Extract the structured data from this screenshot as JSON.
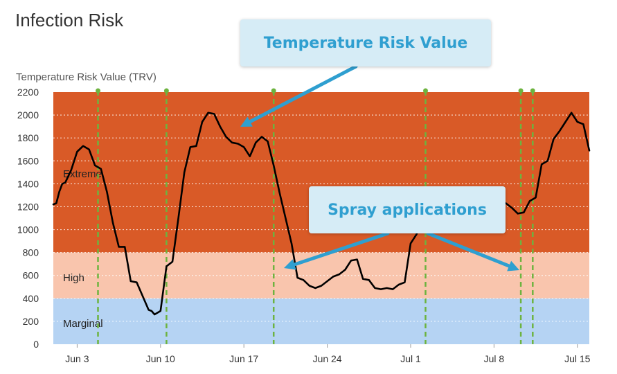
{
  "title": "Infection Risk",
  "callouts": {
    "trv": "Temperature Risk Value",
    "spray": "Spray applications"
  },
  "colors": {
    "extreme": "#d95a27",
    "high": "#f9c5ad",
    "marginal": "#b5d3f3",
    "line": "#000000",
    "spray": "#6db33f",
    "callout_bg": "#d6ecf6",
    "callout_text": "#2f9fd0",
    "arrow": "#2f9fd0"
  },
  "chart_data": {
    "type": "line",
    "ylabel": "Temperature Risk Value (TRV)",
    "ylim": [
      0,
      2200
    ],
    "yticks": [
      0,
      200,
      400,
      600,
      800,
      1000,
      1200,
      1400,
      1600,
      1800,
      2000,
      2200
    ],
    "xlim": [
      "2024-06-01",
      "2024-07-16"
    ],
    "xticks": [
      {
        "date": "2024-06-03",
        "label": "Jun 3"
      },
      {
        "date": "2024-06-10",
        "label": "Jun 10"
      },
      {
        "date": "2024-06-17",
        "label": "Jun 17"
      },
      {
        "date": "2024-06-24",
        "label": "Jun 24"
      },
      {
        "date": "2024-07-01",
        "label": "Jul 1"
      },
      {
        "date": "2024-07-08",
        "label": "Jul 8"
      },
      {
        "date": "2024-07-15",
        "label": "Jul 15"
      }
    ],
    "bands": [
      {
        "label": "Marginal",
        "from": 0,
        "to": 400
      },
      {
        "label": "High",
        "from": 400,
        "to": 800
      },
      {
        "label": "Extreme",
        "from": 800,
        "to": 2200
      }
    ],
    "grid": true,
    "spray_dates": [
      "2024-06-04T18:00",
      "2024-06-10T12:00",
      "2024-06-19T12:00",
      "2024-07-02T06:00",
      "2024-07-10T06:00",
      "2024-07-11T06:00"
    ],
    "series": [
      {
        "x": [
          "2024-06-01T00:00",
          "2024-06-01T06:00",
          "2024-06-01T12:00",
          "2024-06-01T18:00",
          "2024-06-02T00:00",
          "2024-06-02T12:00",
          "2024-06-03T00:00",
          "2024-06-03T12:00",
          "2024-06-04T00:00",
          "2024-06-04T12:00",
          "2024-06-05T00:00",
          "2024-06-05T12:00",
          "2024-06-06T00:00",
          "2024-06-06T12:00",
          "2024-06-07T00:00",
          "2024-06-07T12:00",
          "2024-06-08T00:00",
          "2024-06-08T12:00",
          "2024-06-09T00:00",
          "2024-06-09T06:00",
          "2024-06-09T12:00",
          "2024-06-10T00:00",
          "2024-06-10T12:00",
          "2024-06-11T00:00",
          "2024-06-11T12:00",
          "2024-06-12T00:00",
          "2024-06-12T12:00",
          "2024-06-13T00:00",
          "2024-06-13T12:00",
          "2024-06-14T00:00",
          "2024-06-14T12:00",
          "2024-06-15T00:00",
          "2024-06-15T12:00",
          "2024-06-16T00:00",
          "2024-06-16T12:00",
          "2024-06-17T00:00",
          "2024-06-17T12:00",
          "2024-06-18T00:00",
          "2024-06-18T12:00",
          "2024-06-19T00:00",
          "2024-06-19T12:00",
          "2024-06-20T00:00",
          "2024-06-20T12:00",
          "2024-06-21T00:00",
          "2024-06-21T12:00",
          "2024-06-22T00:00",
          "2024-06-22T12:00",
          "2024-06-23T00:00",
          "2024-06-23T12:00",
          "2024-06-24T00:00",
          "2024-06-24T12:00",
          "2024-06-25T00:00",
          "2024-06-25T12:00",
          "2024-06-26T00:00",
          "2024-06-26T12:00",
          "2024-06-27T00:00",
          "2024-06-27T12:00",
          "2024-06-28T00:00",
          "2024-06-28T12:00",
          "2024-06-29T00:00",
          "2024-06-29T12:00",
          "2024-06-30T00:00",
          "2024-06-30T12:00",
          "2024-07-01T00:00",
          "2024-07-01T12:00",
          "2024-07-02T00:00",
          "2024-07-02T12:00",
          "2024-07-03T00:00",
          "2024-07-09T00:00",
          "2024-07-09T12:00",
          "2024-07-10T00:00",
          "2024-07-10T12:00",
          "2024-07-11T00:00",
          "2024-07-11T12:00",
          "2024-07-12T00:00",
          "2024-07-12T12:00",
          "2024-07-13T00:00",
          "2024-07-13T12:00",
          "2024-07-14T00:00",
          "2024-07-14T12:00",
          "2024-07-15T00:00",
          "2024-07-15T12:00",
          "2024-07-16T00:00"
        ],
        "y": [
          1220,
          1230,
          1330,
          1400,
          1410,
          1520,
          1680,
          1730,
          1700,
          1560,
          1530,
          1330,
          1060,
          850,
          850,
          550,
          540,
          420,
          300,
          290,
          260,
          290,
          680,
          720,
          1100,
          1500,
          1720,
          1730,
          1940,
          2020,
          2010,
          1900,
          1810,
          1760,
          1750,
          1720,
          1640,
          1760,
          1810,
          1770,
          1560,
          1320,
          1100,
          880,
          580,
          560,
          510,
          490,
          510,
          550,
          590,
          610,
          650,
          730,
          740,
          570,
          560,
          490,
          480,
          490,
          480,
          520,
          540,
          880,
          960,
          1120,
          1200,
          1230,
          1230,
          1190,
          1140,
          1150,
          1250,
          1280,
          1570,
          1600,
          1790,
          1860,
          1940,
          2020,
          1940,
          1920,
          1690
        ]
      }
    ]
  }
}
